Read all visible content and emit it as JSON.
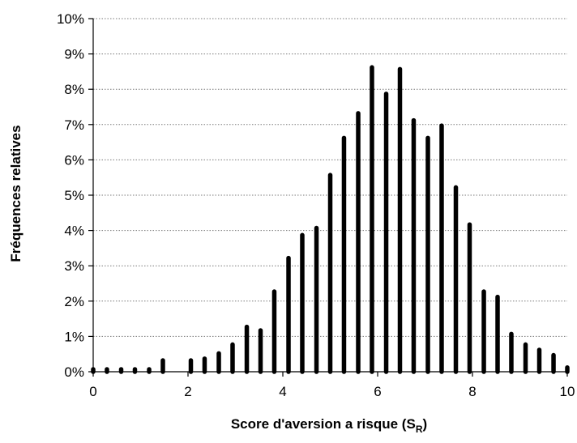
{
  "chart_data": {
    "type": "bar",
    "title": "",
    "xlabel": "Score d'aversion a risque (S",
    "xlabel_subscript": "R",
    "xlabel_suffix": ")",
    "ylabel": "Fréquences relatives",
    "xlim": [
      0,
      10
    ],
    "ylim": [
      0,
      10
    ],
    "x_ticks": [
      "0",
      "2",
      "4",
      "6",
      "8",
      "10"
    ],
    "y_ticks": [
      "0%",
      "1%",
      "2%",
      "3%",
      "4%",
      "5%",
      "6%",
      "7%",
      "8%",
      "9%",
      "10%"
    ],
    "grid": "horizontal-dotted",
    "bar_color": "#000000",
    "unit": "%",
    "x": [
      0,
      0.29,
      0.59,
      0.88,
      1.18,
      1.47,
      2.06,
      2.35,
      2.65,
      2.94,
      3.24,
      3.53,
      3.82,
      4.12,
      4.41,
      4.71,
      5.0,
      5.29,
      5.59,
      5.88,
      6.18,
      6.47,
      6.76,
      7.06,
      7.35,
      7.65,
      7.94,
      8.24,
      8.53,
      8.82,
      9.12,
      9.41,
      9.71,
      10.0
    ],
    "values": [
      0.02,
      0.05,
      0.05,
      0.05,
      0.05,
      0.32,
      0.32,
      0.37,
      0.52,
      0.77,
      1.27,
      1.17,
      2.27,
      3.22,
      3.87,
      4.07,
      5.57,
      6.62,
      7.32,
      8.62,
      7.87,
      8.57,
      7.12,
      6.62,
      6.97,
      5.22,
      4.17,
      2.27,
      2.12,
      1.07,
      0.77,
      0.62,
      0.47,
      0.12
    ]
  }
}
